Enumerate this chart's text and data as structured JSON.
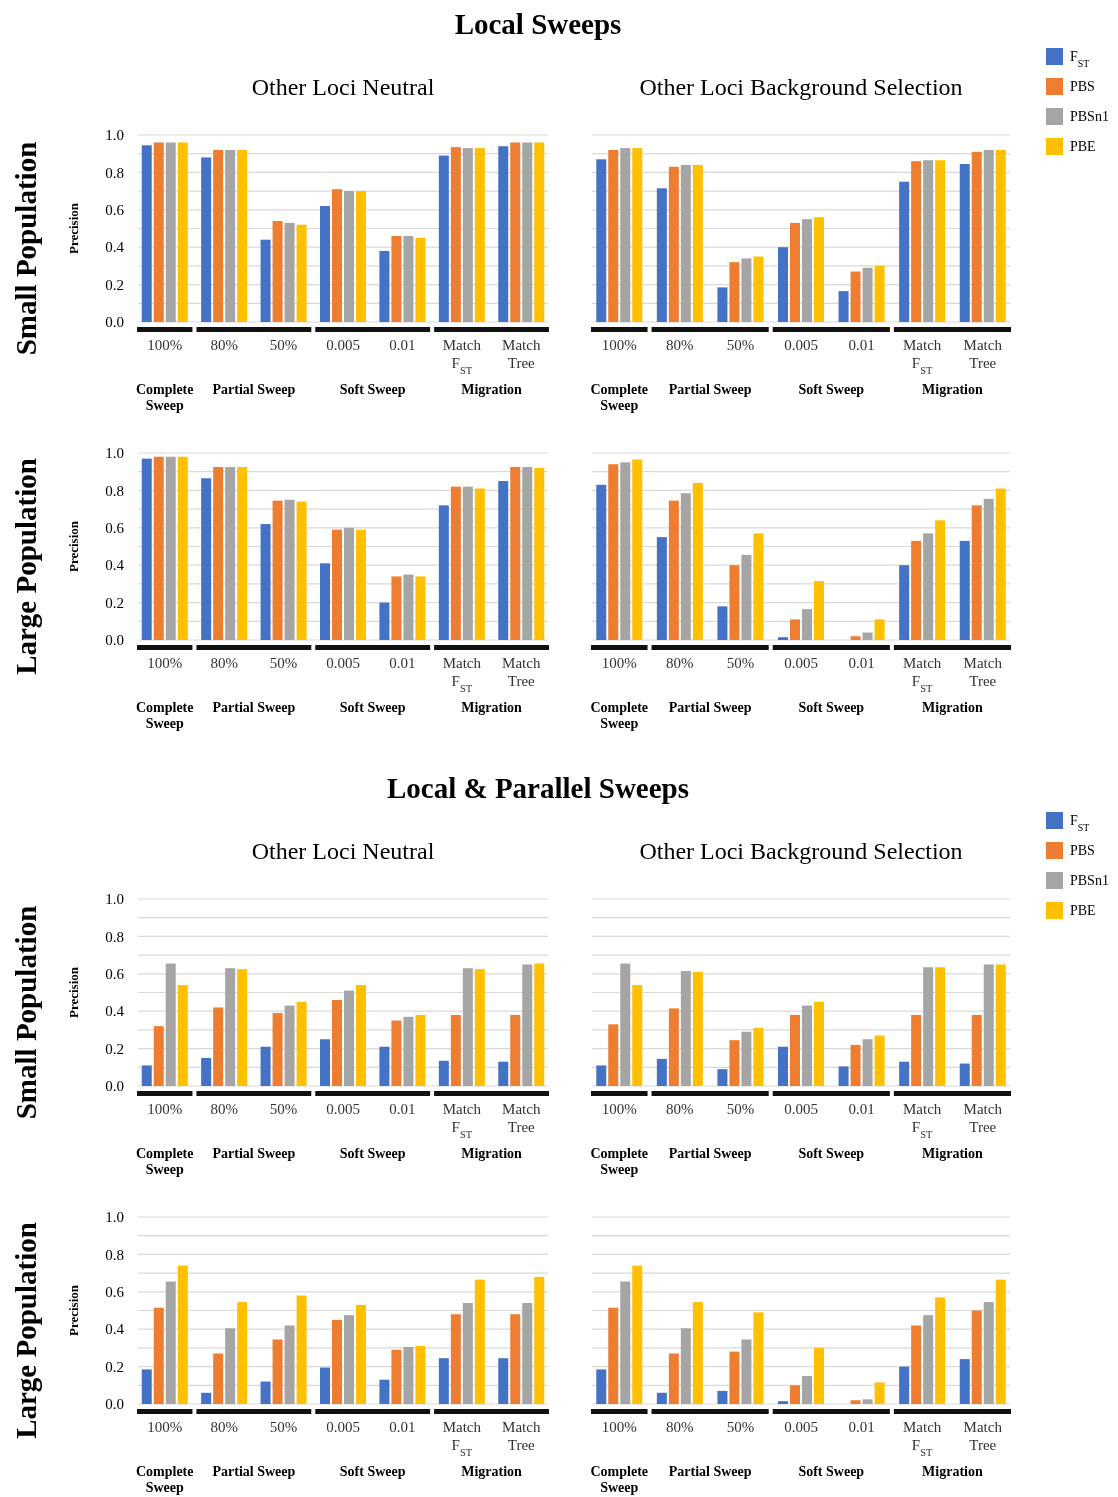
{
  "chart_data": [
    {
      "type": "bar",
      "title": "Local Sweeps",
      "subtitle": "Other Loci Neutral",
      "ylabel": "Precision",
      "categories": [
        "100%",
        "80%",
        "50%",
        "0.005",
        "0.01",
        "Match F$_{ST}$",
        "Match Tree"
      ],
      "series": [
        {
          "color": "#4472c4",
          "values": [
            0.945,
            0.88,
            0.44,
            0.62,
            0.38,
            0.89,
            0.94
          ]
        },
        {
          "color": "#ed7d31",
          "values": [
            0.96,
            0.92,
            0.54,
            0.71,
            0.46,
            0.935,
            0.96
          ]
        },
        {
          "color": "#a5a5a5",
          "values": [
            0.96,
            0.92,
            0.53,
            0.7,
            0.46,
            0.93,
            0.96
          ]
        },
        {
          "color": "#ffc000",
          "values": [
            0.96,
            0.92,
            0.52,
            0.7,
            0.45,
            0.93,
            0.96
          ]
        }
      ],
      "ylim": [
        0,
        1
      ],
      "yticks": [
        {
          "value": 0,
          "label": "0.0"
        },
        {
          "value": 0.1,
          "label": null
        },
        {
          "value": 0.2,
          "label": "0.2"
        },
        {
          "value": 0.3,
          "label": null
        },
        {
          "value": 0.4,
          "label": "0.4"
        },
        {
          "value": 0.5,
          "label": null
        },
        {
          "value": 0.6,
          "label": "0.6"
        },
        {
          "value": 0.7,
          "label": null
        },
        {
          "value": 0.8,
          "label": "0.8"
        },
        {
          "value": 0.9,
          "label": null
        },
        {
          "value": 1,
          "label": "1.0"
        }
      ],
      "grid": "y",
      "legend": false,
      "annotations": [
        "Complete Sweep",
        "Partial Sweep",
        "Soft Sweep",
        "Migration",
        "Small Population"
      ]
    },
    {
      "type": "bar",
      "subtitle": "Other Loci Background Selection",
      "categories": [
        "100%",
        "80%",
        "50%",
        "0.005",
        "0.01",
        "Match F$_{ST}$",
        "Match Tree"
      ],
      "series": [
        {
          "name": "F$_{ST}$",
          "color": "#4472c4",
          "values": [
            0.87,
            0.715,
            0.185,
            0.4,
            0.165,
            0.75,
            0.845
          ]
        },
        {
          "name": "PBS",
          "color": "#ed7d31",
          "values": [
            0.92,
            0.83,
            0.32,
            0.53,
            0.27,
            0.86,
            0.91
          ]
        },
        {
          "name": "PBSn1",
          "color": "#a5a5a5",
          "values": [
            0.93,
            0.84,
            0.34,
            0.55,
            0.29,
            0.865,
            0.92
          ]
        },
        {
          "name": "PBE",
          "color": "#ffc000",
          "values": [
            0.93,
            0.84,
            0.35,
            0.56,
            0.3,
            0.865,
            0.92
          ]
        }
      ],
      "ylim": [
        0,
        1
      ],
      "yticks": [
        {
          "value": 0,
          "label": null
        },
        {
          "value": 0.1,
          "label": null
        },
        {
          "value": 0.2,
          "label": null
        },
        {
          "value": 0.3,
          "label": null
        },
        {
          "value": 0.4,
          "label": null
        },
        {
          "value": 0.5,
          "label": null
        },
        {
          "value": 0.6,
          "label": null
        },
        {
          "value": 0.7,
          "label": null
        },
        {
          "value": 0.8,
          "label": null
        },
        {
          "value": 0.9,
          "label": null
        },
        {
          "value": 1,
          "label": null
        }
      ],
      "grid": "y",
      "legend": "right",
      "tick_labels": "x",
      "annotations": [
        "Complete Sweep",
        "Partial Sweep",
        "Soft Sweep",
        "Migration"
      ]
    },
    {
      "type": "bar",
      "ylabel": "Precision",
      "categories": [
        "100%",
        "80%",
        "50%",
        "0.005",
        "0.01",
        "Match F$_{ST}$",
        "Match Tree"
      ],
      "series": [
        {
          "color": "#4472c4",
          "values": [
            0.97,
            0.865,
            0.62,
            0.41,
            0.2,
            0.72,
            0.85
          ]
        },
        {
          "color": "#ed7d31",
          "values": [
            0.98,
            0.925,
            0.745,
            0.59,
            0.34,
            0.82,
            0.925
          ]
        },
        {
          "color": "#a5a5a5",
          "values": [
            0.98,
            0.925,
            0.75,
            0.6,
            0.35,
            0.82,
            0.925
          ]
        },
        {
          "color": "#ffc000",
          "values": [
            0.98,
            0.925,
            0.74,
            0.59,
            0.34,
            0.81,
            0.92
          ]
        }
      ],
      "ylim": [
        0,
        1
      ],
      "yticks": [
        {
          "value": 0,
          "label": "0.0"
        },
        {
          "value": 0.1,
          "label": null
        },
        {
          "value": 0.2,
          "label": "0.2"
        },
        {
          "value": 0.3,
          "label": null
        },
        {
          "value": 0.4,
          "label": "0.4"
        },
        {
          "value": 0.5,
          "label": null
        },
        {
          "value": 0.6,
          "label": "0.6"
        },
        {
          "value": 0.7,
          "label": null
        },
        {
          "value": 0.8,
          "label": "0.8"
        },
        {
          "value": 0.9,
          "label": null
        },
        {
          "value": 1,
          "label": "1.0"
        }
      ],
      "grid": "y",
      "legend": false,
      "annotations": [
        "Complete Sweep",
        "Partial Sweep",
        "Soft Sweep",
        "Migration",
        "Large Population"
      ]
    },
    {
      "type": "bar",
      "categories": [
        "100%",
        "80%",
        "50%",
        "0.005",
        "0.01",
        "Match F$_{ST}$",
        "Match Tree"
      ],
      "series": [
        {
          "color": "#4472c4",
          "values": [
            0.83,
            0.55,
            0.18,
            0.015,
            0,
            0.4,
            0.53
          ]
        },
        {
          "color": "#ed7d31",
          "values": [
            0.94,
            0.745,
            0.4,
            0.11,
            0.02,
            0.53,
            0.72
          ]
        },
        {
          "color": "#a5a5a5",
          "values": [
            0.95,
            0.785,
            0.455,
            0.165,
            0.04,
            0.57,
            0.755
          ]
        },
        {
          "color": "#ffc000",
          "values": [
            0.965,
            0.84,
            0.57,
            0.315,
            0.11,
            0.64,
            0.81
          ]
        }
      ],
      "ylim": [
        0,
        1
      ],
      "yticks": [
        {
          "value": 0,
          "label": null
        },
        {
          "value": 0.1,
          "label": null
        },
        {
          "value": 0.2,
          "label": null
        },
        {
          "value": 0.3,
          "label": null
        },
        {
          "value": 0.4,
          "label": null
        },
        {
          "value": 0.5,
          "label": null
        },
        {
          "value": 0.6,
          "label": null
        },
        {
          "value": 0.7,
          "label": null
        },
        {
          "value": 0.8,
          "label": null
        },
        {
          "value": 0.9,
          "label": null
        },
        {
          "value": 1,
          "label": null
        }
      ],
      "grid": "y",
      "legend": false,
      "tick_labels": "x",
      "annotations": [
        "Complete Sweep",
        "Partial Sweep",
        "Soft Sweep",
        "Migration"
      ]
    },
    {
      "type": "bar",
      "title": "Local & Parallel Sweeps",
      "subtitle": "Other Loci Neutral",
      "ylabel": "Precision",
      "categories": [
        "100%",
        "80%",
        "50%",
        "0.005",
        "0.01",
        "Match F$_{ST}$",
        "Match Tree"
      ],
      "series": [
        {
          "color": "#4472c4",
          "values": [
            0.11,
            0.15,
            0.21,
            0.25,
            0.21,
            0.135,
            0.13
          ]
        },
        {
          "color": "#ed7d31",
          "values": [
            0.32,
            0.42,
            0.39,
            0.46,
            0.35,
            0.38,
            0.38
          ]
        },
        {
          "color": "#a5a5a5",
          "values": [
            0.655,
            0.63,
            0.43,
            0.51,
            0.37,
            0.63,
            0.65
          ]
        },
        {
          "color": "#ffc000",
          "values": [
            0.54,
            0.625,
            0.45,
            0.54,
            0.38,
            0.625,
            0.655
          ]
        }
      ],
      "ylim": [
        0,
        1
      ],
      "yticks": [
        {
          "value": 0,
          "label": "0.0"
        },
        {
          "value": 0.1,
          "label": null
        },
        {
          "value": 0.2,
          "label": "0.2"
        },
        {
          "value": 0.3,
          "label": null
        },
        {
          "value": 0.4,
          "label": "0.4"
        },
        {
          "value": 0.5,
          "label": null
        },
        {
          "value": 0.6,
          "label": "0.6"
        },
        {
          "value": 0.7,
          "label": null
        },
        {
          "value": 0.8,
          "label": "0.8"
        },
        {
          "value": 0.9,
          "label": null
        },
        {
          "value": 1,
          "label": "1.0"
        }
      ],
      "grid": "y",
      "legend": false,
      "annotations": [
        "Complete Sweep",
        "Partial Sweep",
        "Soft Sweep",
        "Migration",
        "Small Population"
      ]
    },
    {
      "type": "bar",
      "subtitle": "Other Loci Background Selection",
      "categories": [
        "100%",
        "80%",
        "50%",
        "0.005",
        "0.01",
        "Match F$_{ST}$",
        "Match Tree"
      ],
      "series": [
        {
          "name": "F$_{ST}$",
          "color": "#4472c4",
          "values": [
            0.11,
            0.145,
            0.09,
            0.21,
            0.105,
            0.13,
            0.12
          ]
        },
        {
          "name": "PBS",
          "color": "#ed7d31",
          "values": [
            0.33,
            0.415,
            0.245,
            0.38,
            0.22,
            0.38,
            0.38
          ]
        },
        {
          "name": "PBSn1",
          "color": "#a5a5a5",
          "values": [
            0.655,
            0.615,
            0.29,
            0.43,
            0.25,
            0.635,
            0.65
          ]
        },
        {
          "name": "PBE",
          "color": "#ffc000",
          "values": [
            0.54,
            0.61,
            0.31,
            0.45,
            0.27,
            0.635,
            0.65
          ]
        }
      ],
      "ylim": [
        0,
        1
      ],
      "yticks": [
        {
          "value": 0,
          "label": null
        },
        {
          "value": 0.1,
          "label": null
        },
        {
          "value": 0.2,
          "label": null
        },
        {
          "value": 0.3,
          "label": null
        },
        {
          "value": 0.4,
          "label": null
        },
        {
          "value": 0.5,
          "label": null
        },
        {
          "value": 0.6,
          "label": null
        },
        {
          "value": 0.7,
          "label": null
        },
        {
          "value": 0.8,
          "label": null
        },
        {
          "value": 0.9,
          "label": null
        },
        {
          "value": 1,
          "label": null
        }
      ],
      "grid": "y",
      "legend": "right",
      "tick_labels": "x",
      "annotations": [
        "Complete Sweep",
        "Partial Sweep",
        "Soft Sweep",
        "Migration"
      ]
    },
    {
      "type": "bar",
      "ylabel": "Precision",
      "categories": [
        "100%",
        "80%",
        "50%",
        "0.005",
        "0.01",
        "Match F$_{ST}$",
        "Match Tree"
      ],
      "series": [
        {
          "color": "#4472c4",
          "values": [
            0.185,
            0.06,
            0.12,
            0.195,
            0.13,
            0.245,
            0.245
          ]
        },
        {
          "color": "#ed7d31",
          "values": [
            0.515,
            0.27,
            0.345,
            0.45,
            0.29,
            0.48,
            0.48
          ]
        },
        {
          "color": "#a5a5a5",
          "values": [
            0.655,
            0.405,
            0.42,
            0.475,
            0.305,
            0.54,
            0.54
          ]
        },
        {
          "color": "#ffc000",
          "values": [
            0.74,
            0.545,
            0.58,
            0.53,
            0.31,
            0.665,
            0.68
          ]
        }
      ],
      "ylim": [
        0,
        1
      ],
      "yticks": [
        {
          "value": 0,
          "label": "0.0"
        },
        {
          "value": 0.1,
          "label": null
        },
        {
          "value": 0.2,
          "label": "0.2"
        },
        {
          "value": 0.3,
          "label": null
        },
        {
          "value": 0.4,
          "label": "0.4"
        },
        {
          "value": 0.5,
          "label": null
        },
        {
          "value": 0.6,
          "label": "0.6"
        },
        {
          "value": 0.7,
          "label": null
        },
        {
          "value": 0.8,
          "label": "0.8"
        },
        {
          "value": 0.9,
          "label": null
        },
        {
          "value": 1,
          "label": "1.0"
        }
      ],
      "grid": "y",
      "legend": false,
      "annotations": [
        "Complete Sweep",
        "Partial Sweep",
        "Soft Sweep",
        "Migration",
        "Large Population"
      ]
    },
    {
      "type": "bar",
      "categories": [
        "100%",
        "80%",
        "50%",
        "0.005",
        "0.01",
        "Match F$_{ST}$",
        "Match Tree"
      ],
      "series": [
        {
          "color": "#4472c4",
          "values": [
            0.185,
            0.06,
            0.07,
            0.015,
            0,
            0.2,
            0.24
          ]
        },
        {
          "color": "#ed7d31",
          "values": [
            0.515,
            0.27,
            0.28,
            0.1,
            0.02,
            0.42,
            0.5
          ]
        },
        {
          "color": "#a5a5a5",
          "values": [
            0.655,
            0.405,
            0.345,
            0.15,
            0.025,
            0.475,
            0.545
          ]
        },
        {
          "color": "#ffc000",
          "values": [
            0.74,
            0.545,
            0.49,
            0.3,
            0.115,
            0.57,
            0.665
          ]
        }
      ],
      "ylim": [
        0,
        1
      ],
      "yticks": [
        {
          "value": 0,
          "label": null
        },
        {
          "value": 0.1,
          "label": null
        },
        {
          "value": 0.2,
          "label": null
        },
        {
          "value": 0.3,
          "label": null
        },
        {
          "value": 0.4,
          "label": null
        },
        {
          "value": 0.5,
          "label": null
        },
        {
          "value": 0.6,
          "label": null
        },
        {
          "value": 0.7,
          "label": null
        },
        {
          "value": 0.8,
          "label": null
        },
        {
          "value": 0.9,
          "label": null
        },
        {
          "value": 1,
          "label": null
        }
      ],
      "grid": "y",
      "legend": false,
      "tick_labels": "x",
      "annotations": [
        "Complete Sweep",
        "Partial Sweep",
        "Soft Sweep",
        "Migration"
      ]
    }
  ]
}
